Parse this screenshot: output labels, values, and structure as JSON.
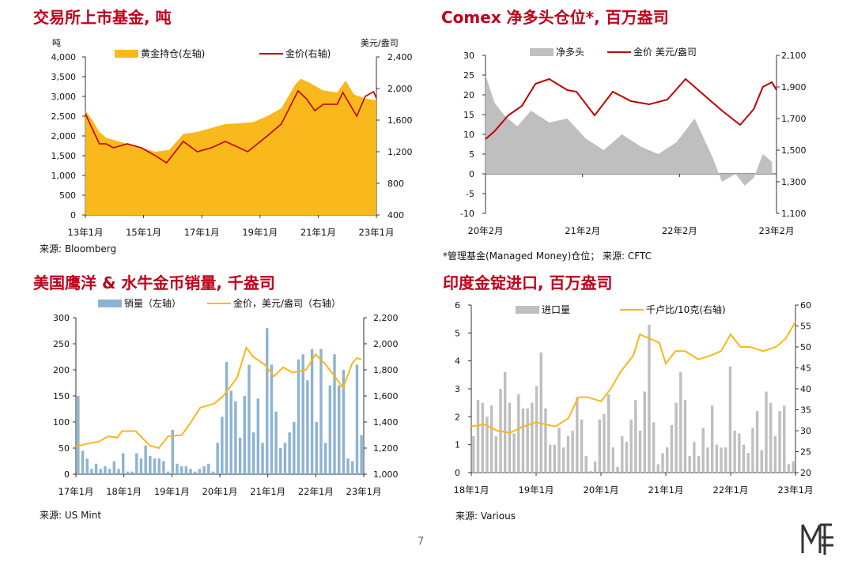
{
  "page_number": "7",
  "chart_data": [
    {
      "type": "area",
      "title": "交易所上市基金, 吨",
      "source": "来源: Bloomberg",
      "left_unit": "吨",
      "right_unit": "美元/盎司",
      "legend": [
        "黄金持仓(左轴)",
        "金价(右轴)"
      ],
      "x_labels": [
        "13年1月",
        "15年1月",
        "17年1月",
        "19年1月",
        "21年1月",
        "23年1月"
      ],
      "x_range": [
        2013.0,
        2023.4
      ],
      "y_left": {
        "min": 0,
        "max": 4000,
        "ticks": [
          "0",
          "500",
          "1,000",
          "1,500",
          "2,000",
          "2,500",
          "3,000",
          "3,500",
          "4,000"
        ]
      },
      "y_right": {
        "min": 400,
        "max": 2400,
        "ticks": [
          "400",
          "800",
          "1,200",
          "1,600",
          "2,000",
          "2,400"
        ]
      },
      "series": [
        {
          "name": "黄金持仓(左轴)",
          "axis": "left",
          "color": "#f9b81b",
          "x": [
            2013.0,
            2013.25,
            2013.5,
            2013.75,
            2014.0,
            2014.5,
            2015.0,
            2015.5,
            2016.0,
            2016.5,
            2017.0,
            2017.5,
            2018.0,
            2018.5,
            2019.0,
            2019.5,
            2020.0,
            2020.5,
            2020.7,
            2021.0,
            2021.5,
            2022.0,
            2022.3,
            2022.6,
            2023.0,
            2023.4
          ],
          "y": [
            2650,
            2400,
            2100,
            1950,
            1900,
            1800,
            1700,
            1600,
            1650,
            2050,
            2100,
            2200,
            2300,
            2320,
            2350,
            2500,
            2700,
            3300,
            3450,
            3350,
            3150,
            3100,
            3400,
            3050,
            2950,
            2900
          ]
        },
        {
          "name": "金价(右轴)",
          "axis": "right",
          "color": "#c00000",
          "x": [
            2013.0,
            2013.3,
            2013.5,
            2013.75,
            2014.0,
            2014.5,
            2015.0,
            2015.5,
            2015.9,
            2016.5,
            2017.0,
            2017.5,
            2018.0,
            2018.5,
            2018.8,
            2019.5,
            2020.0,
            2020.6,
            2020.9,
            2021.2,
            2021.5,
            2022.0,
            2022.2,
            2022.7,
            2023.0,
            2023.3,
            2023.4
          ],
          "y": [
            1680,
            1450,
            1300,
            1300,
            1250,
            1300,
            1250,
            1150,
            1060,
            1330,
            1200,
            1250,
            1330,
            1250,
            1200,
            1400,
            1550,
            1970,
            1870,
            1720,
            1800,
            1800,
            1950,
            1650,
            1900,
            1960,
            1880
          ]
        }
      ]
    },
    {
      "type": "area",
      "title": "Comex 净多头仓位*, 百万盎司",
      "source": "*管理基金(Managed Money)仓位； 来源: CFTC",
      "legend": [
        "净多头",
        "金价 美元/盎司"
      ],
      "x_labels": [
        "20年2月",
        "21年2月",
        "22年2月",
        "23年2月"
      ],
      "x_range": [
        2020.0,
        2023.2
      ],
      "y_left": {
        "min": -10,
        "max": 30,
        "ticks": [
          "-10",
          "-5",
          "0",
          "5",
          "10",
          "15",
          "20",
          "25",
          "30"
        ]
      },
      "y_right": {
        "min": 1100,
        "max": 2100,
        "ticks": [
          "1,100",
          "1,300",
          "1,500",
          "1,700",
          "1,900",
          "2,100"
        ]
      },
      "series": [
        {
          "name": "净多头",
          "axis": "left",
          "color": "#bfbfbf",
          "x": [
            2020.0,
            2020.1,
            2020.2,
            2020.35,
            2020.5,
            2020.7,
            2020.9,
            2021.1,
            2021.3,
            2021.5,
            2021.7,
            2021.9,
            2022.1,
            2022.3,
            2022.5,
            2022.6,
            2022.75,
            2022.85,
            2022.95,
            2023.05,
            2023.15
          ],
          "y": [
            25,
            18,
            15,
            12,
            16,
            13,
            14,
            9,
            6,
            10,
            7,
            5,
            8,
            14,
            4,
            -2,
            0,
            -3,
            -1,
            5,
            3
          ]
        },
        {
          "name": "金价 美元/盎司",
          "axis": "right",
          "color": "#c00000",
          "x": [
            2020.0,
            2020.1,
            2020.25,
            2020.4,
            2020.55,
            2020.7,
            2020.9,
            2021.0,
            2021.2,
            2021.4,
            2021.6,
            2021.8,
            2022.0,
            2022.2,
            2022.4,
            2022.6,
            2022.8,
            2022.95,
            2023.05,
            2023.15,
            2023.2
          ],
          "y": [
            1570,
            1620,
            1720,
            1780,
            1920,
            1950,
            1880,
            1870,
            1720,
            1870,
            1810,
            1790,
            1820,
            1950,
            1850,
            1750,
            1660,
            1760,
            1900,
            1930,
            1880
          ]
        }
      ]
    },
    {
      "type": "bar",
      "title": "美国鹰洋 & 水牛金币销量, 千盎司",
      "source": "来源: US Mint",
      "legend": [
        "销量（左轴）",
        "金价，美元/盎司（右轴）"
      ],
      "x_labels": [
        "17年1月",
        "18年1月",
        "19年1月",
        "20年1月",
        "21年1月",
        "22年1月",
        "23年1月"
      ],
      "x_range": [
        2017.0,
        2023.25
      ],
      "y_left": {
        "min": 0,
        "max": 300,
        "ticks": [
          "0",
          "50",
          "100",
          "150",
          "200",
          "250",
          "300"
        ]
      },
      "y_right": {
        "min": 1000,
        "max": 2200,
        "ticks": [
          "1,000",
          "1,200",
          "1,400",
          "1,600",
          "1,800",
          "2,000",
          "2,200"
        ]
      },
      "series": [
        {
          "name": "销量（左轴）",
          "axis": "left",
          "color": "#8db3d4",
          "values": [
            150,
            45,
            30,
            10,
            20,
            10,
            15,
            10,
            25,
            10,
            40,
            5,
            5,
            40,
            30,
            55,
            35,
            30,
            30,
            25,
            5,
            85,
            20,
            15,
            15,
            10,
            5,
            10,
            15,
            20,
            5,
            60,
            110,
            215,
            160,
            140,
            70,
            150,
            210,
            80,
            145,
            60,
            280,
            210,
            120,
            50,
            60,
            80,
            100,
            220,
            230,
            180,
            240,
            100,
            240,
            60,
            170,
            230,
            170,
            200,
            30,
            25,
            210,
            75
          ]
        },
        {
          "name": "金价，美元/盎司（右轴）",
          "axis": "right",
          "color": "#f9b81b",
          "x": [
            2017.0,
            2017.2,
            2017.5,
            2017.7,
            2017.9,
            2018.0,
            2018.3,
            2018.6,
            2018.8,
            2019.0,
            2019.3,
            2019.5,
            2019.7,
            2020.0,
            2020.2,
            2020.5,
            2020.7,
            2020.85,
            2021.1,
            2021.3,
            2021.5,
            2021.7,
            2022.0,
            2022.2,
            2022.4,
            2022.6,
            2022.8,
            2023.0,
            2023.1,
            2023.2
          ],
          "y": [
            1210,
            1230,
            1250,
            1290,
            1280,
            1330,
            1330,
            1220,
            1200,
            1290,
            1300,
            1400,
            1510,
            1540,
            1600,
            1740,
            1970,
            1900,
            1840,
            1750,
            1820,
            1780,
            1800,
            1920,
            1850,
            1760,
            1660,
            1850,
            1890,
            1880
          ]
        }
      ]
    },
    {
      "type": "bar",
      "title": "印度金锭进口, 百万盎司",
      "source": "来源: Various",
      "legend": [
        "进口量",
        "千卢比/10克(右轴)"
      ],
      "x_labels": [
        "18年1月",
        "19年1月",
        "20年1月",
        "21年1月",
        "22年1月",
        "23年1月"
      ],
      "x_range": [
        2018.0,
        2023.0
      ],
      "y_left": {
        "min": 0,
        "max": 6,
        "ticks": [
          "0",
          "1",
          "2",
          "3",
          "4",
          "5",
          "6"
        ]
      },
      "y_right": {
        "min": 20,
        "max": 60,
        "ticks": [
          "20",
          "25",
          "30",
          "35",
          "40",
          "45",
          "50",
          "55",
          "60"
        ]
      },
      "series": [
        {
          "name": "进口量",
          "axis": "left",
          "color": "#bfbfbf",
          "values": [
            1.3,
            2.6,
            2.5,
            2.0,
            2.4,
            1.3,
            3.0,
            3.6,
            2.5,
            1.4,
            2.8,
            2.3,
            2.3,
            2.5,
            3.1,
            4.3,
            2.3,
            1.0,
            1.0,
            1.6,
            0.9,
            1.3,
            1.5,
            2.7,
            1.9,
            0.6,
            0.05,
            0.4,
            1.9,
            2.1,
            2.8,
            0.9,
            0.2,
            1.3,
            1.1,
            1.9,
            2.6,
            1.5,
            2.9,
            5.3,
            1.8,
            0.3,
            0.7,
            0.9,
            1.7,
            2.5,
            3.6,
            2.6,
            0.6,
            1.1,
            0.6,
            1.6,
            0.9,
            2.4,
            1.0,
            0.9,
            0.9,
            3.8,
            1.5,
            1.4,
            1.0,
            0.7,
            1.6,
            2.2,
            0.8,
            2.9,
            2.5,
            1.3,
            2.2,
            2.4,
            0.3,
            0.4
          ]
        },
        {
          "name": "千卢比/10克(右轴)",
          "axis": "right",
          "color": "#f9b81b",
          "x": [
            2018.0,
            2018.2,
            2018.4,
            2018.6,
            2018.8,
            2019.0,
            2019.3,
            2019.5,
            2019.65,
            2019.8,
            2020.0,
            2020.15,
            2020.3,
            2020.5,
            2020.6,
            2020.9,
            2021.0,
            2021.15,
            2021.3,
            2021.5,
            2021.7,
            2021.85,
            2022.0,
            2022.15,
            2022.3,
            2022.5,
            2022.7,
            2022.85,
            2023.0
          ],
          "y": [
            31,
            31.5,
            30,
            29.5,
            31,
            32,
            31,
            33,
            38,
            38,
            37,
            40,
            44,
            48,
            53,
            51,
            46,
            49,
            49,
            47,
            48,
            49,
            53,
            50,
            50,
            49,
            50,
            52,
            56
          ]
        }
      ]
    }
  ]
}
